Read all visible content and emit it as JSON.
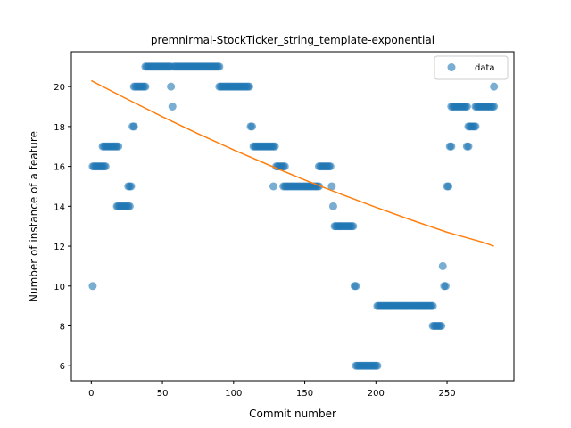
{
  "chart_data": {
    "type": "scatter",
    "title": "premnirmal-StockTicker_string_template-exponential",
    "xlabel": "Commit number",
    "ylabel": "Number of instance of a feature",
    "xlim": [
      -14,
      297
    ],
    "ylim": [
      5.25,
      21.75
    ],
    "xticks": [
      0,
      50,
      100,
      150,
      200,
      250
    ],
    "yticks": [
      6,
      8,
      10,
      12,
      14,
      16,
      18,
      20
    ],
    "legend": {
      "position": "top-right",
      "entries": [
        "data"
      ]
    },
    "colors": {
      "points": "#1f77b4",
      "fit": "#ff7f0e"
    },
    "series": [
      {
        "name": "data",
        "kind": "scatter",
        "segments": [
          {
            "x": [
              1,
              1
            ],
            "y": 10
          },
          {
            "x": [
              1,
              10
            ],
            "y": 16
          },
          {
            "x": [
              8,
              19
            ],
            "y": 17
          },
          {
            "x": [
              18,
              27
            ],
            "y": 14
          },
          {
            "x": [
              26,
              28
            ],
            "y": 15
          },
          {
            "x": [
              29,
              30
            ],
            "y": 18
          },
          {
            "x": [
              30,
              38
            ],
            "y": 20
          },
          {
            "x": [
              38,
              56
            ],
            "y": 21
          },
          {
            "x": [
              56,
              56
            ],
            "y": 20
          },
          {
            "x": [
              57,
              57
            ],
            "y": 19
          },
          {
            "x": [
              58,
              90
            ],
            "y": 21
          },
          {
            "x": [
              90,
              111
            ],
            "y": 20
          },
          {
            "x": [
              112,
              113
            ],
            "y": 18
          },
          {
            "x": [
              114,
              129
            ],
            "y": 17
          },
          {
            "x": [
              128,
              128
            ],
            "y": 15
          },
          {
            "x": [
              130,
              136
            ],
            "y": 16
          },
          {
            "x": [
              135,
              160
            ],
            "y": 15
          },
          {
            "x": [
              160,
              168
            ],
            "y": 16
          },
          {
            "x": [
              169,
              169
            ],
            "y": 15
          },
          {
            "x": [
              170,
              170
            ],
            "y": 14
          },
          {
            "x": [
              171,
              184
            ],
            "y": 13
          },
          {
            "x": [
              185,
              186
            ],
            "y": 10
          },
          {
            "x": [
              186,
              201
            ],
            "y": 6
          },
          {
            "x": [
              201,
              240
            ],
            "y": 9
          },
          {
            "x": [
              240,
              246
            ],
            "y": 8
          },
          {
            "x": [
              247,
              247
            ],
            "y": 11
          },
          {
            "x": [
              248,
              249
            ],
            "y": 10
          },
          {
            "x": [
              250,
              251
            ],
            "y": 15
          },
          {
            "x": [
              252,
              253
            ],
            "y": 17
          },
          {
            "x": [
              253,
              264
            ],
            "y": 19
          },
          {
            "x": [
              264,
              265
            ],
            "y": 17
          },
          {
            "x": [
              265,
              270
            ],
            "y": 18
          },
          {
            "x": [
              270,
              283
            ],
            "y": 19
          },
          {
            "x": [
              283,
              283
            ],
            "y": 20
          }
        ]
      },
      {
        "name": "",
        "kind": "line",
        "x": [
          0,
          25,
          50,
          75,
          100,
          125,
          150,
          175,
          200,
          225,
          250,
          275,
          283
        ],
        "y": [
          20.3,
          19.38,
          18.49,
          17.64,
          16.83,
          16.06,
          15.32,
          14.62,
          13.95,
          13.31,
          12.7,
          12.2,
          12.0
        ]
      }
    ]
  }
}
